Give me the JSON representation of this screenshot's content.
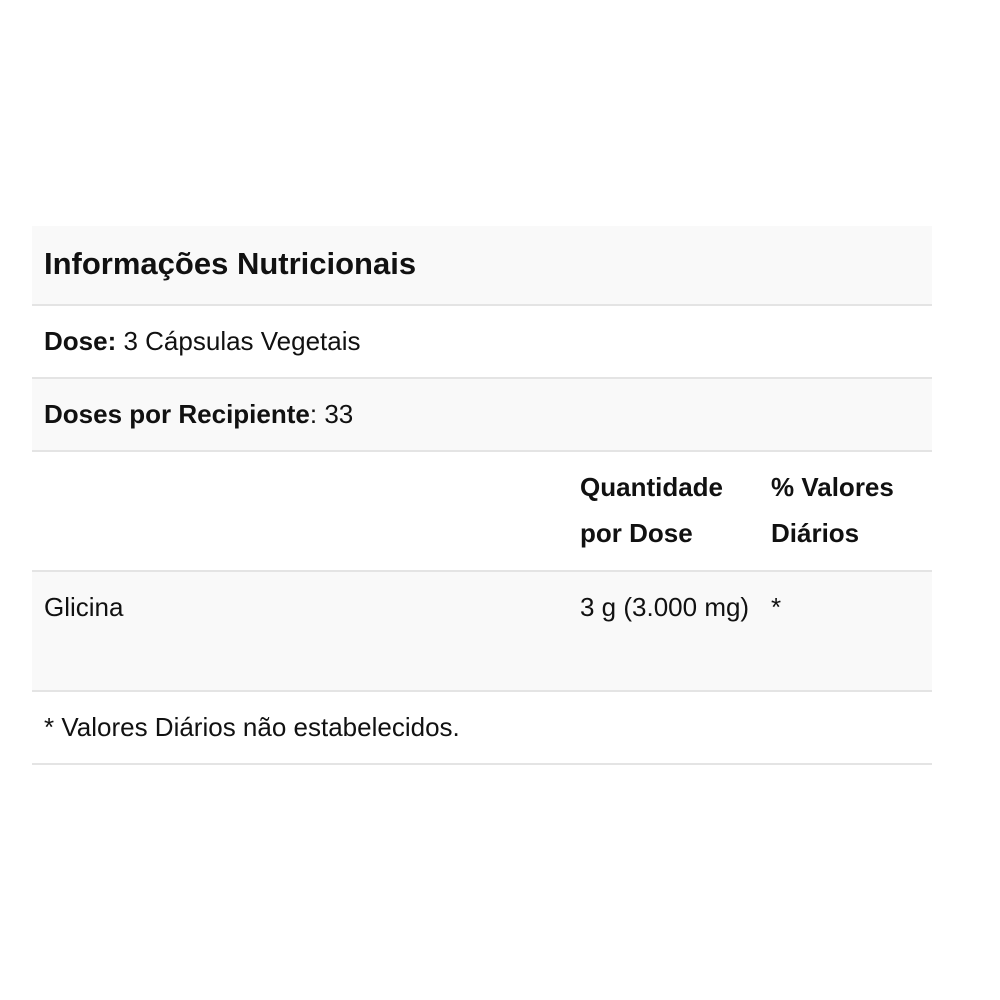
{
  "title": "Informações Nutricionais",
  "dose": {
    "label": "Dose:",
    "value": " 3 Cápsulas Vegetais"
  },
  "servings": {
    "label": "Doses por Recipiente",
    "colon": ":",
    "value": " 33"
  },
  "table": {
    "columns": [
      "",
      "Quantidade por Dose",
      "% Valores Diários"
    ],
    "rows": [
      {
        "name": "Glicina",
        "amount": "3 g (3.000 mg)",
        "daily_value": "*"
      }
    ]
  },
  "footnote": "* Valores Diários não estabelecidos.",
  "colors": {
    "row_alt": "#f9f9f9",
    "border": "#e4e4e4",
    "text": "#111111"
  }
}
